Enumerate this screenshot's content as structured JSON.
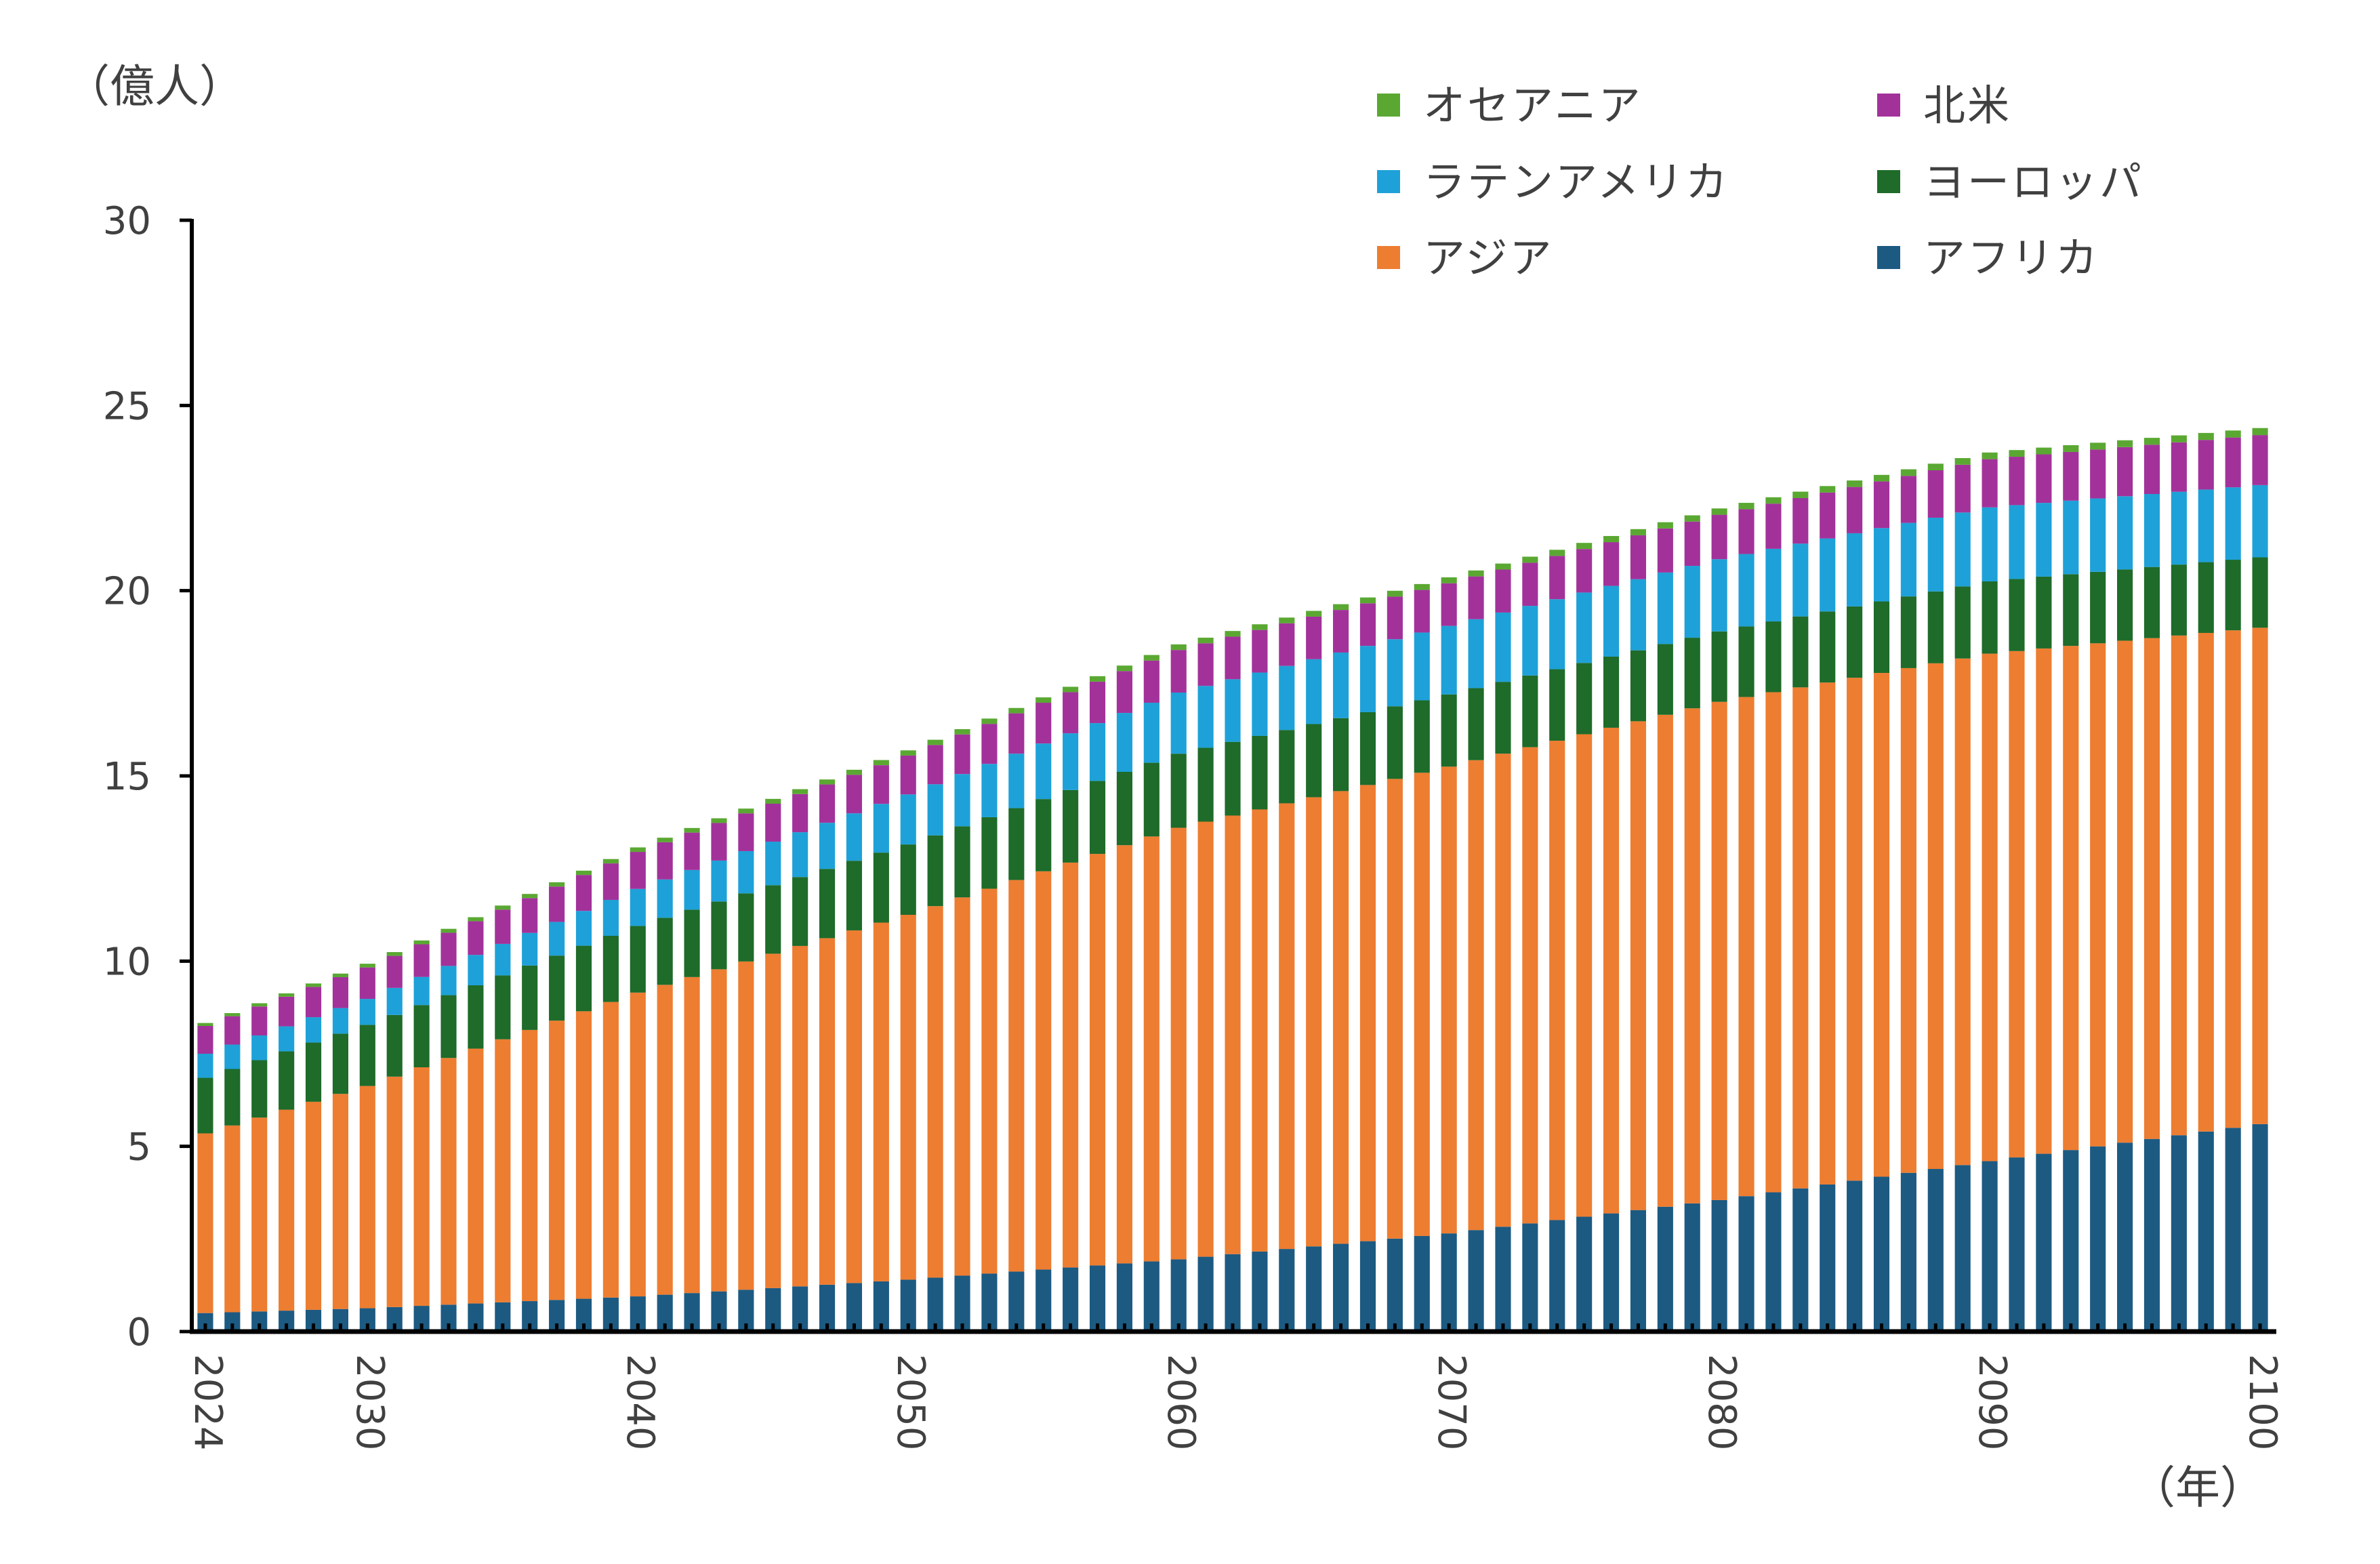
{
  "chart_data": {
    "type": "bar",
    "stacked": true,
    "ylabel": "（億人）",
    "xlabel": "（年）",
    "ylim": [
      0,
      30
    ],
    "yticks": [
      0,
      5,
      10,
      15,
      20,
      25,
      30
    ],
    "xtick_labels": [
      "2024",
      "2030",
      "2040",
      "2050",
      "2060",
      "2070",
      "2080",
      "2090",
      "2100"
    ],
    "x_start": 2024,
    "x_end": 2100,
    "legend_position": "top-right",
    "legend_order": [
      5,
      4,
      3,
      2,
      1,
      0
    ],
    "series": [
      {
        "name": "アフリカ",
        "color": "#1c5a82",
        "anchors": [
          [
            2024,
            0.5
          ],
          [
            2030,
            0.63
          ],
          [
            2040,
            0.95
          ],
          [
            2050,
            1.4
          ],
          [
            2060,
            1.95
          ],
          [
            2070,
            2.65
          ],
          [
            2080,
            3.55
          ],
          [
            2090,
            4.6
          ],
          [
            2100,
            5.6
          ]
        ]
      },
      {
        "name": "アジア",
        "color": "#ed7d31",
        "anchors": [
          [
            2024,
            4.85
          ],
          [
            2030,
            6.0
          ],
          [
            2040,
            8.2
          ],
          [
            2050,
            9.85
          ],
          [
            2060,
            11.65
          ],
          [
            2070,
            12.6
          ],
          [
            2080,
            13.45
          ],
          [
            2090,
            13.7
          ],
          [
            2100,
            13.4
          ]
        ]
      },
      {
        "name": "ヨーロッパ",
        "color": "#1e6b2a",
        "anchors": [
          [
            2024,
            1.5
          ],
          [
            2030,
            1.65
          ],
          [
            2040,
            1.8
          ],
          [
            2050,
            1.9
          ],
          [
            2060,
            2.0
          ],
          [
            2070,
            1.95
          ],
          [
            2080,
            1.9
          ],
          [
            2090,
            1.95
          ],
          [
            2100,
            1.9
          ]
        ]
      },
      {
        "name": "ラテンアメリカ",
        "color": "#1ea1d8",
        "anchors": [
          [
            2024,
            0.65
          ],
          [
            2030,
            0.7
          ],
          [
            2040,
            1.0
          ],
          [
            2050,
            1.35
          ],
          [
            2060,
            1.65
          ],
          [
            2070,
            1.85
          ],
          [
            2080,
            1.95
          ],
          [
            2090,
            2.0
          ],
          [
            2100,
            1.95
          ]
        ]
      },
      {
        "name": "北米",
        "color": "#a2329a",
        "anchors": [
          [
            2024,
            0.75
          ],
          [
            2030,
            0.85
          ],
          [
            2040,
            1.0
          ],
          [
            2050,
            1.05
          ],
          [
            2060,
            1.15
          ],
          [
            2070,
            1.15
          ],
          [
            2080,
            1.2
          ],
          [
            2090,
            1.3
          ],
          [
            2100,
            1.35
          ]
        ]
      },
      {
        "name": "オセアニア",
        "color": "#5aa832",
        "anchors": [
          [
            2024,
            0.08
          ],
          [
            2030,
            0.1
          ],
          [
            2040,
            0.12
          ],
          [
            2050,
            0.14
          ],
          [
            2060,
            0.15
          ],
          [
            2070,
            0.16
          ],
          [
            2080,
            0.17
          ],
          [
            2090,
            0.18
          ],
          [
            2100,
            0.19
          ]
        ]
      }
    ]
  }
}
